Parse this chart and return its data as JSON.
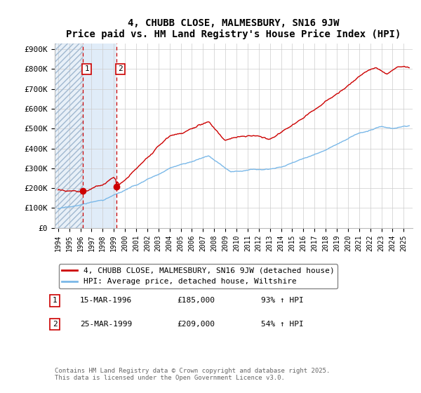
{
  "title": "4, CHUBB CLOSE, MALMESBURY, SN16 9JW",
  "subtitle": "Price paid vs. HM Land Registry's House Price Index (HPI)",
  "hpi_color": "#7ab8e8",
  "price_color": "#cc0000",
  "bg_hatch_color": "#e8f0f8",
  "bg_between_color": "#e0ecf8",
  "vline_color": "#cc0000",
  "ylim": [
    0,
    930000
  ],
  "yticks": [
    0,
    100000,
    200000,
    300000,
    400000,
    500000,
    600000,
    700000,
    800000,
    900000
  ],
  "ytick_labels": [
    "£0",
    "£100K",
    "£200K",
    "£300K",
    "£400K",
    "£500K",
    "£600K",
    "£700K",
    "£800K",
    "£900K"
  ],
  "xlim_start": 1993.7,
  "xlim_end": 2025.8,
  "xticks": [
    1994,
    1995,
    1996,
    1997,
    1998,
    1999,
    2000,
    2001,
    2002,
    2003,
    2004,
    2005,
    2006,
    2007,
    2008,
    2009,
    2010,
    2011,
    2012,
    2013,
    2014,
    2015,
    2016,
    2017,
    2018,
    2019,
    2020,
    2021,
    2022,
    2023,
    2024,
    2025
  ],
  "legend_label_price": "4, CHUBB CLOSE, MALMESBURY, SN16 9JW (detached house)",
  "legend_label_hpi": "HPI: Average price, detached house, Wiltshire",
  "sale1_x": 1996.21,
  "sale1_y": 185000,
  "sale1_label": "1",
  "sale2_x": 1999.23,
  "sale2_y": 209000,
  "sale2_label": "2",
  "footer": "Contains HM Land Registry data © Crown copyright and database right 2025.\nThis data is licensed under the Open Government Licence v3.0.",
  "hatch_end": 1996.21,
  "blue_end": 1999.23
}
